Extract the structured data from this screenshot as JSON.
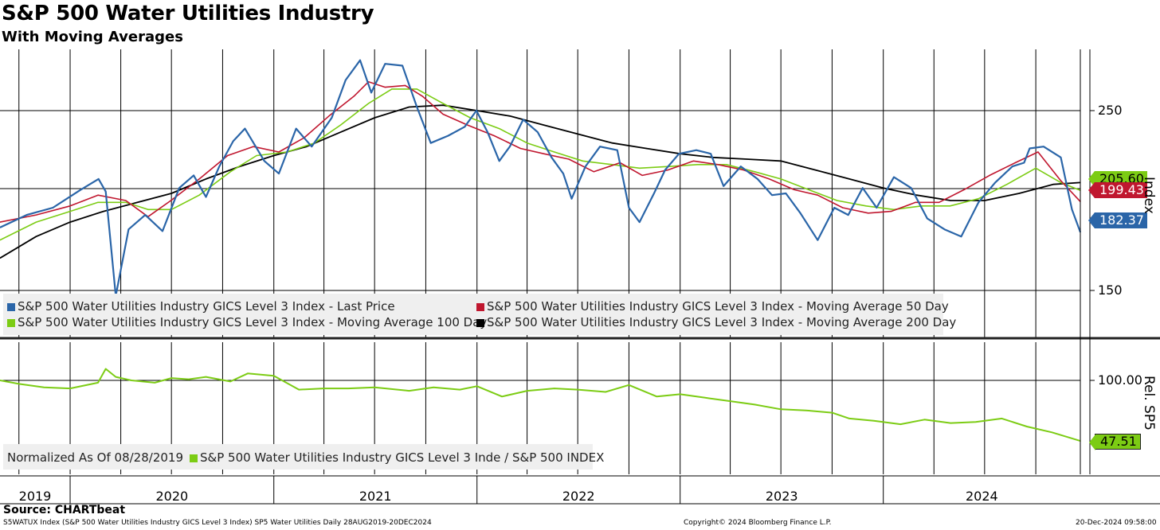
{
  "header": {
    "title": "S&P 500 Water Utilities Industry",
    "subtitle": "With Moving Averages"
  },
  "footer": {
    "source": "Source: CHARTbeat",
    "description": "S5WATUX Index (S&P 500 Water Utilities Industry GICS Level 3 Index) SP5 Water Utilities  Daily 28AUG2019-20DEC2024",
    "copyright": "Copyright© 2024 Bloomberg Finance L.P.",
    "timestamp": "20-Dec-2024 09:58:00"
  },
  "colors": {
    "last_price": "#2a65a8",
    "ma50": "#c0172f",
    "ma100": "#7ccc14",
    "ma200": "#000000",
    "relative": "#7ccc14",
    "grid": "#000000"
  },
  "legend_upper": {
    "last_price": "S&P 500 Water Utilities Industry GICS Level 3 Index - Last Price",
    "ma50": "S&P 500 Water Utilities Industry GICS Level 3 Index - Moving Average 50 Day",
    "ma100": "S&P 500 Water Utilities Industry GICS Level 3 Index - Moving Average 100 Day",
    "ma200": "S&P 500 Water Utilities Industry GICS Level 3 Index - Moving Average 200 Day"
  },
  "legend_lower": {
    "note": "Normalized As Of 08/28/2019",
    "series": "S&P 500 Water Utilities Industry GICS Level 3 Inde / S&P 500 INDEX"
  },
  "badges": {
    "ma100": "205.60",
    "ma50": "199.43",
    "last": "182.37",
    "relative": "47.51"
  },
  "chart_data": [
    {
      "type": "line",
      "panel": "upper",
      "title": "S&P 500 Water Utilities Industry",
      "subtitle": "With Moving Averages",
      "ylabel": "Index",
      "yticks": [
        150,
        250
      ],
      "ylim": [
        123,
        300
      ],
      "x_axis_labels": [
        "2019",
        "2020",
        "2021",
        "2022",
        "2023",
        "2024"
      ],
      "x_range": [
        "2019-08-28",
        "2024-12-20"
      ],
      "grid": true,
      "legend_position": "bottom-left",
      "series": [
        {
          "name": "S&P 500 Water Utilities Industry GICS Level 3 Index - Last Price",
          "color": "#2a65a8",
          "x": [
            "2019-08-28",
            "2019-10-15",
            "2019-12-01",
            "2020-01-20",
            "2020-02-21",
            "2020-03-05",
            "2020-03-23",
            "2020-04-15",
            "2020-05-15",
            "2020-06-15",
            "2020-07-15",
            "2020-08-10",
            "2020-09-01",
            "2020-09-25",
            "2020-10-20",
            "2020-11-10",
            "2020-12-15",
            "2021-01-10",
            "2021-02-10",
            "2021-03-10",
            "2021-04-15",
            "2021-05-10",
            "2021-06-05",
            "2021-06-25",
            "2021-07-20",
            "2021-08-20",
            "2021-09-15",
            "2021-10-10",
            "2021-11-10",
            "2021-12-10",
            "2021-12-31",
            "2022-01-20",
            "2022-02-10",
            "2022-03-01",
            "2022-03-25",
            "2022-04-20",
            "2022-05-15",
            "2022-06-05",
            "2022-06-20",
            "2022-07-15",
            "2022-08-10",
            "2022-09-10",
            "2022-10-01",
            "2022-10-20",
            "2022-11-15",
            "2022-12-05",
            "2022-12-30",
            "2023-01-30",
            "2023-02-25",
            "2023-03-20",
            "2023-04-20",
            "2023-05-20",
            "2023-06-15",
            "2023-07-10",
            "2023-08-05",
            "2023-09-05",
            "2023-10-05",
            "2023-10-30",
            "2023-11-25",
            "2023-12-20",
            "2024-01-20",
            "2024-02-20",
            "2024-03-20",
            "2024-04-20",
            "2024-05-20",
            "2024-06-20",
            "2024-07-20",
            "2024-08-20",
            "2024-09-10",
            "2024-09-20",
            "2024-10-15",
            "2024-11-15",
            "2024-12-05",
            "2024-12-20"
          ],
          "values": [
            185,
            192,
            196,
            206,
            212,
            205,
            147,
            184,
            192,
            183,
            207,
            214,
            202,
            219,
            233,
            240,
            222,
            215,
            240,
            230,
            246,
            267,
            278,
            260,
            276,
            275,
            252,
            232,
            236,
            241,
            250,
            238,
            222,
            230,
            245,
            238,
            224,
            215,
            201,
            219,
            230,
            228,
            196,
            188,
            204,
            217,
            226,
            228,
            226,
            208,
            219,
            212,
            203,
            204,
            193,
            178,
            196,
            192,
            207,
            196,
            213,
            207,
            190,
            184,
            180,
            199,
            210,
            219,
            221,
            229,
            230,
            224,
            195,
            182.37
          ]
        },
        {
          "name": "S&P 500 Water Utilities Industry GICS Level 3 Index - Moving Average 50 Day",
          "color": "#c0172f",
          "x": [
            "2019-08-28",
            "2019-11-01",
            "2020-01-01",
            "2020-02-20",
            "2020-04-10",
            "2020-05-20",
            "2020-06-30",
            "2020-08-20",
            "2020-10-10",
            "2020-11-25",
            "2021-01-10",
            "2021-02-25",
            "2021-04-10",
            "2021-05-25",
            "2021-06-20",
            "2021-07-20",
            "2021-08-25",
            "2021-09-25",
            "2021-11-01",
            "2021-12-15",
            "2022-02-01",
            "2022-03-20",
            "2022-05-01",
            "2022-06-15",
            "2022-07-30",
            "2022-09-15",
            "2022-10-25",
            "2022-12-10",
            "2023-01-25",
            "2023-03-10",
            "2023-04-25",
            "2023-06-10",
            "2023-07-25",
            "2023-09-05",
            "2023-10-20",
            "2023-12-05",
            "2024-01-15",
            "2024-02-28",
            "2024-04-10",
            "2024-05-25",
            "2024-07-10",
            "2024-08-25",
            "2024-10-05",
            "2024-11-15",
            "2024-12-20"
          ],
          "values": [
            188,
            192,
            197,
            203,
            200,
            191,
            200,
            212,
            225,
            230,
            227,
            235,
            247,
            258,
            266,
            263,
            264,
            258,
            248,
            242,
            236,
            229,
            226,
            223,
            216,
            221,
            214,
            217,
            222,
            220,
            217,
            212,
            206,
            203,
            196,
            193,
            194,
            199,
            199,
            206,
            214,
            221,
            227,
            211,
            199.43
          ]
        },
        {
          "name": "S&P 500 Water Utilities Industry GICS Level 3 Index - Moving Average 100 Day",
          "color": "#7ccc14",
          "x": [
            "2019-08-28",
            "2019-11-01",
            "2020-01-01",
            "2020-02-20",
            "2020-04-10",
            "2020-05-20",
            "2020-07-01",
            "2020-08-20",
            "2020-10-15",
            "2020-12-01",
            "2021-01-25",
            "2021-03-15",
            "2021-05-01",
            "2021-06-20",
            "2021-08-01",
            "2021-09-15",
            "2021-11-01",
            "2021-12-20",
            "2022-02-10",
            "2022-04-01",
            "2022-05-20",
            "2022-07-10",
            "2022-09-01",
            "2022-10-20",
            "2022-12-15",
            "2023-02-01",
            "2023-03-25",
            "2023-05-15",
            "2023-07-01",
            "2023-08-20",
            "2023-10-10",
            "2023-12-01",
            "2024-01-20",
            "2024-03-10",
            "2024-04-30",
            "2024-06-20",
            "2024-08-10",
            "2024-10-01",
            "2024-11-15",
            "2024-12-20"
          ],
          "values": [
            178,
            188,
            194,
            199,
            199,
            195,
            195,
            203,
            216,
            225,
            227,
            232,
            242,
            254,
            262,
            262,
            254,
            246,
            240,
            232,
            227,
            222,
            220,
            218,
            219,
            220,
            220,
            216,
            212,
            206,
            200,
            197,
            195,
            197,
            197,
            201,
            209,
            218,
            210,
            205.6
          ]
        },
        {
          "name": "S&P 500 Water Utilities Industry GICS Level 3 Index - Moving Average 200 Day",
          "color": "#000000",
          "x": [
            "2019-08-28",
            "2019-11-01",
            "2020-01-01",
            "2020-03-01",
            "2020-05-01",
            "2020-07-01",
            "2020-09-01",
            "2020-11-01",
            "2021-01-01",
            "2021-03-01",
            "2021-05-01",
            "2021-07-01",
            "2021-09-01",
            "2021-11-01",
            "2022-01-01",
            "2022-03-01",
            "2022-05-01",
            "2022-07-01",
            "2022-09-01",
            "2022-11-01",
            "2023-01-01",
            "2023-03-01",
            "2023-05-01",
            "2023-07-01",
            "2023-09-01",
            "2023-11-01",
            "2024-01-01",
            "2024-03-01",
            "2024-05-01",
            "2024-07-01",
            "2024-09-01",
            "2024-11-01",
            "2024-12-20"
          ],
          "values": [
            168,
            180,
            188,
            194,
            199,
            204,
            212,
            219,
            225,
            230,
            238,
            246,
            252,
            253,
            250,
            247,
            242,
            237,
            232,
            229,
            226,
            224,
            223,
            222,
            217,
            212,
            207,
            203,
            200,
            200,
            204,
            209,
            210
          ]
        }
      ]
    },
    {
      "type": "line",
      "panel": "lower",
      "ylabel": "Rel. SP5",
      "yticks": [
        100.0
      ],
      "ylim": [
        38,
        120
      ],
      "annotation": "Normalized As Of 08/28/2019",
      "legend_position": "bottom-left",
      "series": [
        {
          "name": "S&P 500 Water Utilities Industry GICS Level 3 Inde / S&P 500 INDEX",
          "color": "#7ccc14",
          "x": [
            "2019-08-28",
            "2019-10-01",
            "2019-11-15",
            "2020-01-01",
            "2020-02-20",
            "2020-03-05",
            "2020-03-23",
            "2020-04-20",
            "2020-06-01",
            "2020-07-01",
            "2020-08-01",
            "2020-09-01",
            "2020-10-15",
            "2020-11-15",
            "2021-01-01",
            "2021-02-15",
            "2021-04-01",
            "2021-05-15",
            "2021-07-01",
            "2021-09-01",
            "2021-10-15",
            "2021-12-01",
            "2022-01-01",
            "2022-02-15",
            "2022-04-01",
            "2022-05-20",
            "2022-07-01",
            "2022-08-20",
            "2022-10-01",
            "2022-11-20",
            "2023-01-01",
            "2023-02-15",
            "2023-04-01",
            "2023-05-15",
            "2023-07-01",
            "2023-08-15",
            "2023-10-01",
            "2023-11-01",
            "2023-12-15",
            "2024-02-01",
            "2024-03-15",
            "2024-05-01",
            "2024-06-15",
            "2024-08-01",
            "2024-09-15",
            "2024-10-30",
            "2024-12-20"
          ],
          "values": [
            100,
            97,
            94,
            93,
            98,
            110,
            103,
            100,
            98,
            102,
            101,
            103,
            99,
            106,
            104,
            92,
            93,
            93,
            94,
            91,
            94,
            92,
            95,
            86,
            91,
            93,
            92,
            90,
            96,
            86,
            88,
            85,
            82,
            79,
            75,
            74,
            72,
            67,
            65,
            62,
            66,
            63,
            64,
            67,
            60,
            55,
            47.51
          ]
        }
      ]
    }
  ]
}
